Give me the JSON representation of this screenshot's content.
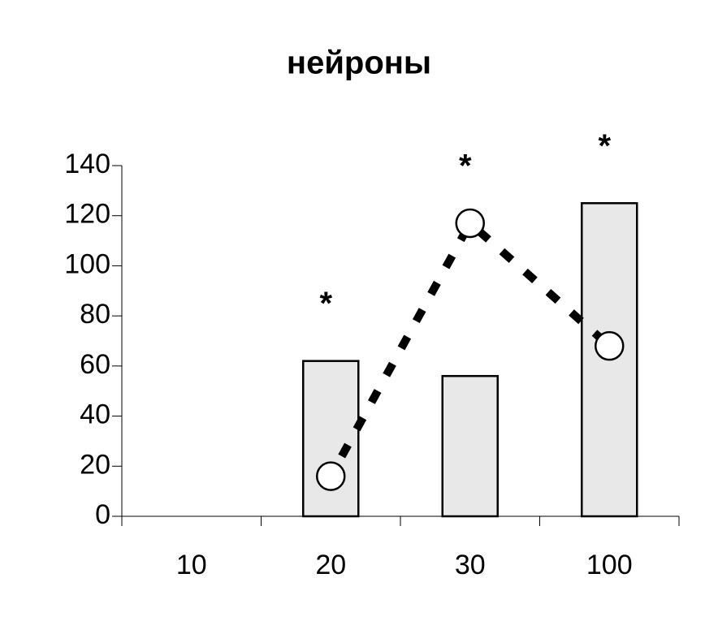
{
  "chart_data": {
    "type": "combo",
    "title": "нейроны",
    "categories": [
      "10",
      "20",
      "30",
      "100"
    ],
    "series": [
      {
        "type": "bar",
        "color": "#e8e8e8",
        "values": [
          null,
          62,
          56,
          125
        ]
      },
      {
        "type": "line",
        "color": "#000000",
        "values": [
          null,
          16,
          117,
          68
        ]
      }
    ],
    "annotations": [
      null,
      "*",
      "*",
      "*"
    ],
    "ylim": [
      0,
      140
    ],
    "yticks": [
      0,
      20,
      40,
      60,
      80,
      100,
      120,
      140
    ]
  }
}
